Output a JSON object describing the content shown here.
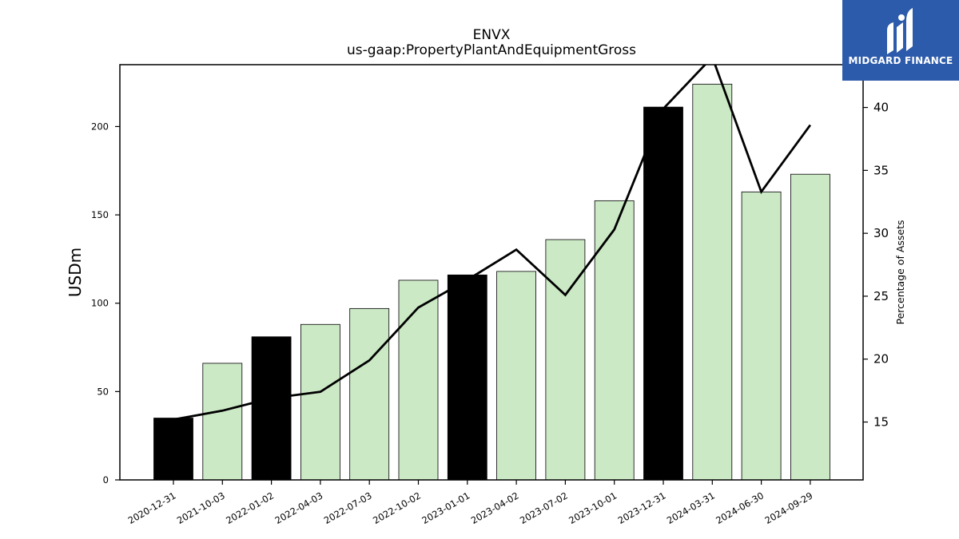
{
  "chart_data": {
    "type": "bar",
    "title": "ENVX",
    "subtitle": "us-gaap:PropertyPlantAndEquipmentGross",
    "ylabel": "USDm",
    "y2label": "Percentage of Assets",
    "ylim": [
      0,
      235
    ],
    "y2lim": [
      10.4,
      43.4
    ],
    "yticks": [
      0,
      50,
      100,
      150,
      200
    ],
    "y2ticks": [
      15,
      20,
      25,
      30,
      35,
      40
    ],
    "categories": [
      "2020-12-31",
      "2021-10-03",
      "2022-01-02",
      "2022-04-03",
      "2022-07-03",
      "2022-10-02",
      "2023-01-01",
      "2023-04-02",
      "2023-07-02",
      "2023-10-01",
      "2023-12-31",
      "2024-03-31",
      "2024-06-30",
      "2024-09-29"
    ],
    "series": [
      {
        "kind": "bar",
        "values": [
          35,
          66,
          81,
          88,
          97,
          113,
          116,
          118,
          136,
          158,
          211,
          224,
          163,
          173
        ],
        "colors": [
          "#000000",
          "#cce9c6",
          "#000000",
          "#cce9c6",
          "#cce9c6",
          "#cce9c6",
          "#000000",
          "#cce9c6",
          "#cce9c6",
          "#cce9c6",
          "#000000",
          "#cce9c6",
          "#cce9c6",
          "#cce9c6"
        ]
      },
      {
        "kind": "line",
        "axis": "right",
        "values": [
          15.2,
          15.9,
          16.9,
          17.4,
          19.9,
          24.1,
          26.3,
          28.7,
          25.1,
          30.3,
          39.9,
          44.0,
          33.3,
          38.6
        ],
        "color": "#000000"
      }
    ],
    "grid": false
  },
  "logo": {
    "text": "MIDGARD FINANCE",
    "color": "#2d5bab"
  }
}
